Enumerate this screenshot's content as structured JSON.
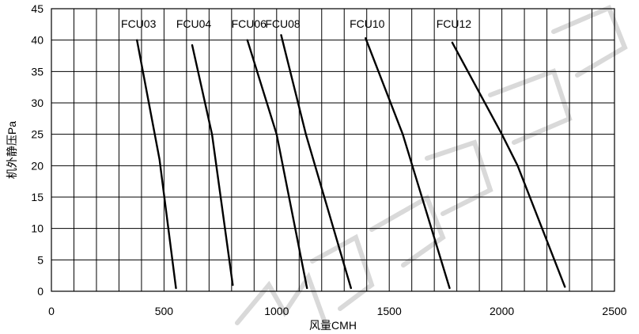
{
  "chart_data": {
    "type": "line",
    "title": "",
    "xlabel": "风量CMH",
    "ylabel": "机外静压Pa",
    "xlim": [
      0,
      2500
    ],
    "ylim": [
      0,
      45
    ],
    "xticks": [
      0,
      500,
      1000,
      1500,
      2000,
      2500
    ],
    "yticks": [
      0,
      5,
      10,
      15,
      20,
      25,
      30,
      35,
      40,
      45
    ],
    "x_grid_step": 100,
    "y_grid_step": 5,
    "grid": true,
    "legend": "none",
    "line_color": "#000000",
    "series": [
      {
        "name": "FCU03",
        "points": [
          [
            380,
            40
          ],
          [
            480,
            21
          ],
          [
            553,
            0.5
          ]
        ]
      },
      {
        "name": "FCU04",
        "points": [
          [
            625,
            39.2
          ],
          [
            713,
            25
          ],
          [
            805,
            1
          ]
        ]
      },
      {
        "name": "FCU06",
        "points": [
          [
            870,
            40
          ],
          [
            1000,
            25
          ],
          [
            1135,
            0.5
          ]
        ]
      },
      {
        "name": "FCU08",
        "points": [
          [
            1020,
            40.8
          ],
          [
            1130,
            25
          ],
          [
            1330,
            0.5
          ]
        ]
      },
      {
        "name": "FCU10",
        "points": [
          [
            1395,
            40.3
          ],
          [
            1560,
            25
          ],
          [
            1768,
            0.5
          ]
        ]
      },
      {
        "name": "FCU12",
        "points": [
          [
            1780,
            39.6
          ],
          [
            2000,
            25
          ],
          [
            2070,
            20
          ],
          [
            2280,
            0.7
          ]
        ]
      }
    ]
  }
}
